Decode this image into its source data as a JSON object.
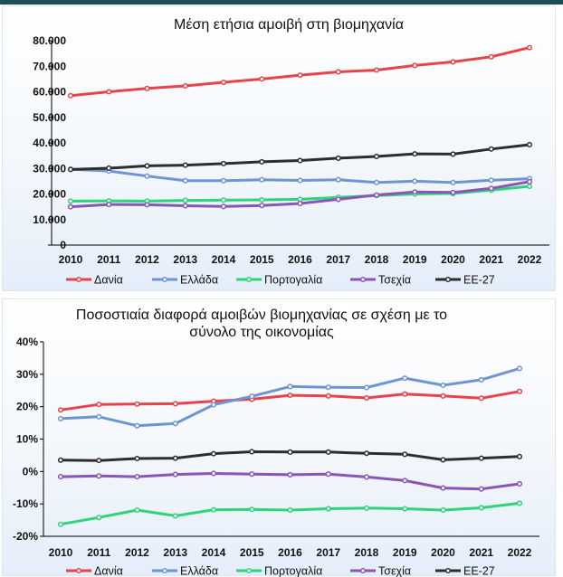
{
  "chart_data": [
    {
      "type": "line",
      "title": "Μέση ετήσια αμοιβή στη βιομηχανία",
      "categories": [
        "2010",
        "2011",
        "2012",
        "2013",
        "2014",
        "2015",
        "2016",
        "2017",
        "2018",
        "2019",
        "2020",
        "2021",
        "2022"
      ],
      "y_ticks": [
        "0",
        "10.000",
        "20.000",
        "30.000",
        "40.000",
        "50.000",
        "60.000",
        "70.000",
        "80.000"
      ],
      "ylim": [
        0,
        80000
      ],
      "grid": false,
      "legend_position": "bottom",
      "series": [
        {
          "name": "Δανία",
          "color": "#e8434b",
          "values": [
            58500,
            60000,
            61300,
            62300,
            63700,
            65000,
            66500,
            67800,
            68500,
            70300,
            71700,
            73700,
            77300
          ]
        },
        {
          "name": "Ελλάδα",
          "color": "#6f94d3",
          "values": [
            29700,
            29000,
            27000,
            25200,
            25200,
            25600,
            25300,
            25600,
            24500,
            25000,
            24500,
            25400,
            26000
          ]
        },
        {
          "name": "Πορτογαλία",
          "color": "#2ed47a",
          "values": [
            17200,
            17300,
            17200,
            17500,
            17600,
            17700,
            17900,
            18700,
            19400,
            20000,
            20200,
            21500,
            23000
          ]
        },
        {
          "name": "Τσεχία",
          "color": "#8a55b8",
          "values": [
            15000,
            15900,
            15800,
            15400,
            15100,
            15500,
            16300,
            17900,
            19600,
            20800,
            20600,
            22200,
            24800
          ]
        },
        {
          "name": "ΕΕ-27",
          "color": "#2d2d2d",
          "values": [
            29600,
            30100,
            31000,
            31300,
            31900,
            32600,
            33100,
            34000,
            34700,
            35700,
            35600,
            37600,
            39300
          ]
        }
      ]
    },
    {
      "type": "line",
      "title": "Ποσοστιαία διαφορά αμοιβών βιομηχανίας σε σχέση με το σύνολο της οικονομίας",
      "title_lines": [
        "Ποσοστιαία διαφορά αμοιβών βιομηχανίας σε σχέση με το",
        "σύνολο της οικονομίας"
      ],
      "categories": [
        "2010",
        "2011",
        "2012",
        "2013",
        "2014",
        "2015",
        "2016",
        "2017",
        "2018",
        "2019",
        "2020",
        "2021",
        "2022"
      ],
      "y_ticks": [
        "-20%",
        "-10%",
        "0%",
        "10%",
        "20%",
        "30%",
        "40%"
      ],
      "ylim": [
        -20,
        40
      ],
      "grid": false,
      "legend_position": "bottom",
      "series": [
        {
          "name": "Δανία",
          "color": "#e8434b",
          "values": [
            19.0,
            20.7,
            20.8,
            20.9,
            21.7,
            22.3,
            23.5,
            23.3,
            22.7,
            23.9,
            23.3,
            22.6,
            24.7
          ]
        },
        {
          "name": "Ελλάδα",
          "color": "#6f94d3",
          "values": [
            16.3,
            16.9,
            14.1,
            14.8,
            20.6,
            23.2,
            26.2,
            26.0,
            25.9,
            28.8,
            26.6,
            28.3,
            31.8
          ]
        },
        {
          "name": "Πορτογαλία",
          "color": "#2ed47a",
          "values": [
            -16.3,
            -14.2,
            -11.9,
            -13.7,
            -11.8,
            -11.7,
            -11.9,
            -11.5,
            -11.3,
            -11.5,
            -11.9,
            -11.2,
            -9.8
          ]
        },
        {
          "name": "Τσεχία",
          "color": "#8a55b8",
          "values": [
            -1.6,
            -1.4,
            -1.6,
            -0.9,
            -0.6,
            -0.8,
            -1.0,
            -0.8,
            -1.7,
            -2.8,
            -5.1,
            -5.4,
            -3.8
          ]
        },
        {
          "name": "ΕΕ-27",
          "color": "#2d2d2d",
          "values": [
            3.5,
            3.4,
            4.0,
            4.1,
            5.5,
            6.1,
            6.0,
            6.0,
            5.6,
            5.3,
            3.6,
            4.1,
            4.6
          ]
        }
      ]
    }
  ]
}
